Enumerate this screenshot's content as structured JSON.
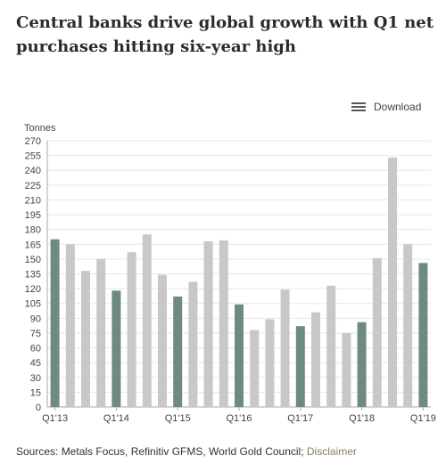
{
  "header": {
    "title": "Central banks drive global growth with Q1 net purchases hitting six-year high"
  },
  "toolbar": {
    "download_label": "Download",
    "download_icon": "menu-icon"
  },
  "colors": {
    "highlight": "#6d8b7e",
    "other": "#c8c8c8",
    "axis": "#aaaaaa",
    "grid": "#e6e6e6"
  },
  "chart_data": {
    "type": "bar",
    "ylabel": "Tonnes",
    "ylim": [
      0,
      270
    ],
    "yticks": [
      0,
      15,
      30,
      45,
      60,
      75,
      90,
      105,
      120,
      135,
      150,
      165,
      180,
      195,
      210,
      225,
      240,
      255,
      270
    ],
    "grid": true,
    "tick_labels": [
      {
        "index": 0,
        "label": "Q1'13"
      },
      {
        "index": 4,
        "label": "Q1'14"
      },
      {
        "index": 8,
        "label": "Q1'15"
      },
      {
        "index": 12,
        "label": "Q1'16"
      },
      {
        "index": 16,
        "label": "Q1'17"
      },
      {
        "index": 20,
        "label": "Q1'18"
      },
      {
        "index": 24,
        "label": "Q1'19"
      }
    ],
    "values": [
      170,
      165,
      138,
      150,
      118,
      157,
      175,
      134,
      112,
      127,
      168,
      169,
      104,
      78,
      89,
      119,
      82,
      96,
      123,
      75,
      86,
      151,
      253,
      165,
      146
    ],
    "highlighted_indices": [
      0,
      4,
      8,
      12,
      16,
      20,
      24
    ]
  },
  "footer": {
    "sources_text": "Sources: Metals Focus, Refinitiv GFMS, World Gold Council;",
    "disclaimer_label": "Disclaimer"
  }
}
